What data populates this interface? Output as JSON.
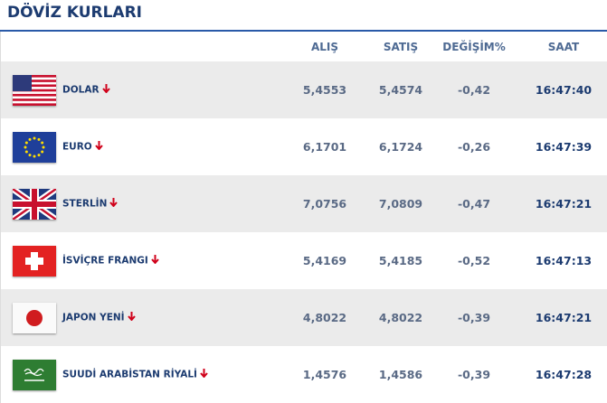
{
  "header": {
    "title": "DÖVİZ KURLARI"
  },
  "table": {
    "columns": [
      "ALIŞ",
      "SATIŞ",
      "DEĞİŞİM%",
      "SAAT"
    ],
    "rows": [
      {
        "name": "DOLAR",
        "alis": "5,4553",
        "satis": "5,4574",
        "degisim": "-0,42",
        "saat": "16:47:40"
      },
      {
        "name": "EURO",
        "alis": "6,1701",
        "satis": "6,1724",
        "degisim": "-0,26",
        "saat": "16:47:39"
      },
      {
        "name": "STERLİN",
        "alis": "7,0756",
        "satis": "7,0809",
        "degisim": "-0,47",
        "saat": "16:47:21"
      },
      {
        "name": "İSVİÇRE FRANGI",
        "alis": "5,4169",
        "satis": "5,4185",
        "degisim": "-0,52",
        "saat": "16:47:13"
      },
      {
        "name": "JAPON YENİ",
        "alis": "4,8022",
        "satis": "4,8022",
        "degisim": "-0,39",
        "saat": "16:47:21"
      },
      {
        "name": "SUUDİ ARABİSTAN RİYALİ",
        "alis": "1,4576",
        "satis": "1,4586",
        "degisim": "-0,39",
        "saat": "16:47:28"
      }
    ]
  }
}
